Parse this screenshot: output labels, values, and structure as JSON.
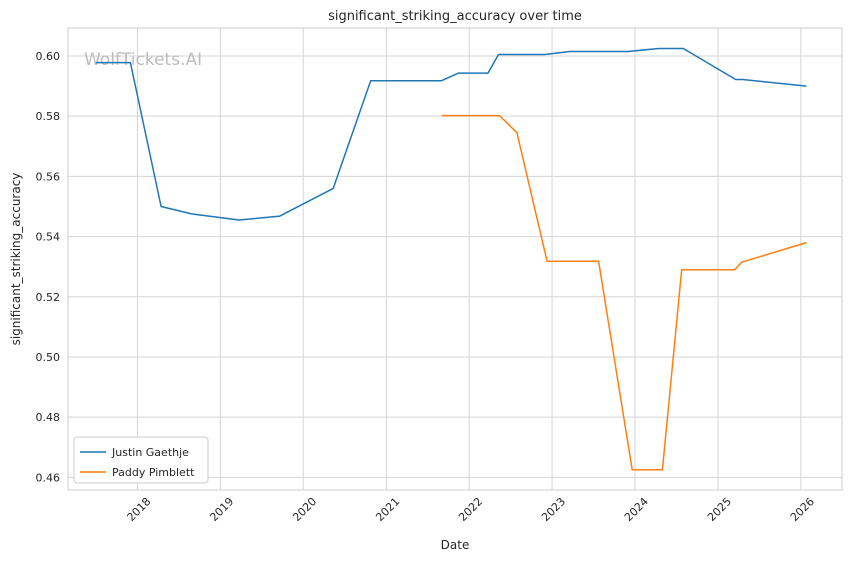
{
  "chart_data": {
    "type": "line",
    "title": "significant_striking_accuracy over time",
    "xlabel": "Date",
    "ylabel": "significant_striking_accuracy",
    "watermark": "WolfTickets.AI",
    "x_ticks": [
      "2018",
      "2019",
      "2020",
      "2021",
      "2022",
      "2023",
      "2024",
      "2025",
      "2026"
    ],
    "y_ticks": [
      "0.46",
      "0.48",
      "0.50",
      "0.52",
      "0.54",
      "0.56",
      "0.58",
      "0.60"
    ],
    "xlim": [
      "2017-03-01",
      "2026-07-01"
    ],
    "ylim": [
      0.4558,
      0.6093
    ],
    "grid": true,
    "legend_position": "lower-left",
    "series": [
      {
        "name": "Justin Gaethje",
        "color": "#1f77b4",
        "points": [
          [
            "2017-07-01",
            0.5978
          ],
          [
            "2017-12-01",
            0.5978
          ],
          [
            "2018-04-15",
            0.55
          ],
          [
            "2018-08-30",
            0.5475
          ],
          [
            "2019-03-25",
            0.5455
          ],
          [
            "2019-09-20",
            0.5468
          ],
          [
            "2020-05-12",
            0.556
          ],
          [
            "2020-10-24",
            0.5918
          ],
          [
            "2021-09-01",
            0.5918
          ],
          [
            "2021-11-15",
            0.5943
          ],
          [
            "2022-03-25",
            0.5943
          ],
          [
            "2022-05-10",
            0.6005
          ],
          [
            "2022-12-01",
            0.6005
          ],
          [
            "2023-03-20",
            0.6015
          ],
          [
            "2023-12-01",
            0.6015
          ],
          [
            "2024-04-15",
            0.6025
          ],
          [
            "2024-08-01",
            0.6025
          ],
          [
            "2025-03-20",
            0.5922
          ],
          [
            "2025-04-20",
            0.5922
          ],
          [
            "2026-01-25",
            0.59
          ]
        ]
      },
      {
        "name": "Paddy Pimblett",
        "color": "#ff7f0e",
        "points": [
          [
            "2021-09-01",
            0.5802
          ],
          [
            "2022-05-15",
            0.5802
          ],
          [
            "2022-07-30",
            0.5745
          ],
          [
            "2022-12-10",
            0.5318
          ],
          [
            "2023-07-25",
            0.5318
          ],
          [
            "2023-12-20",
            0.4625
          ],
          [
            "2024-05-01",
            0.4625
          ],
          [
            "2024-07-25",
            0.529
          ],
          [
            "2025-03-15",
            0.529
          ],
          [
            "2025-04-15",
            0.5315
          ],
          [
            "2026-01-25",
            0.538
          ]
        ]
      }
    ]
  }
}
